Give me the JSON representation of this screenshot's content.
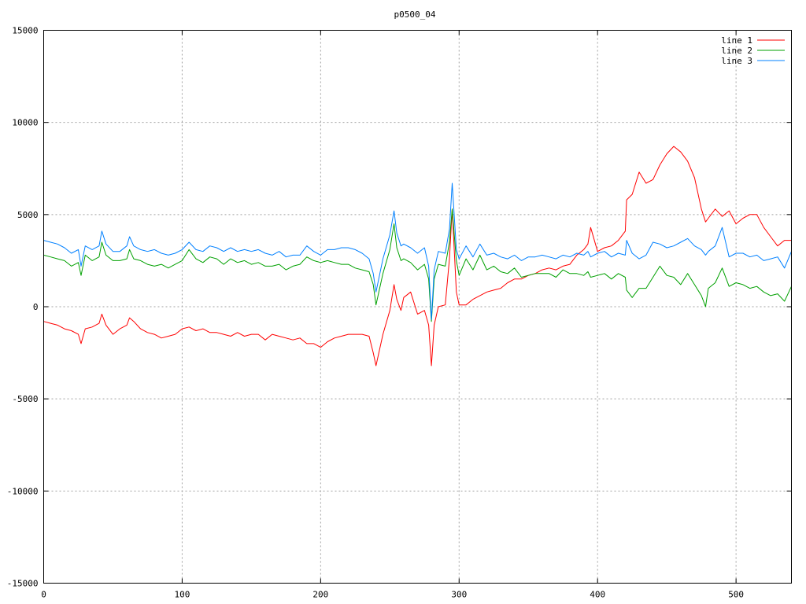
{
  "chart_data": {
    "type": "line",
    "title": "p0500_04",
    "xlim": [
      0,
      540
    ],
    "ylim": [
      -15000,
      15000
    ],
    "x_ticks": [
      0,
      100,
      200,
      300,
      400,
      500
    ],
    "y_ticks": [
      15000,
      10000,
      5000,
      0,
      -5000,
      -10000,
      -15000
    ],
    "grid": true,
    "legend_position": "top-right",
    "series": [
      {
        "name": "line 1",
        "color": "#ff0000",
        "x": [
          0,
          5,
          10,
          15,
          20,
          25,
          27,
          30,
          35,
          40,
          42,
          45,
          50,
          55,
          60,
          62,
          65,
          70,
          75,
          80,
          85,
          90,
          95,
          100,
          105,
          110,
          115,
          120,
          125,
          130,
          135,
          140,
          145,
          150,
          155,
          160,
          165,
          170,
          175,
          180,
          185,
          190,
          195,
          200,
          205,
          210,
          215,
          220,
          225,
          230,
          235,
          238,
          240,
          245,
          250,
          253,
          255,
          258,
          260,
          265,
          270,
          275,
          278,
          280,
          282,
          285,
          290,
          293,
          295,
          298,
          300,
          305,
          310,
          315,
          320,
          325,
          330,
          335,
          340,
          345,
          350,
          355,
          360,
          365,
          370,
          375,
          380,
          385,
          390,
          393,
          395,
          400,
          405,
          410,
          415,
          420,
          421,
          425,
          430,
          435,
          440,
          445,
          450,
          455,
          460,
          465,
          470,
          475,
          478,
          480,
          485,
          490,
          495,
          500,
          505,
          510,
          515,
          520,
          525,
          530,
          535,
          540
        ],
        "values": [
          -800,
          -900,
          -1000,
          -1200,
          -1300,
          -1500,
          -2000,
          -1200,
          -1100,
          -900,
          -400,
          -1000,
          -1500,
          -1200,
          -1000,
          -600,
          -800,
          -1200,
          -1400,
          -1500,
          -1700,
          -1600,
          -1500,
          -1200,
          -1100,
          -1300,
          -1200,
          -1400,
          -1400,
          -1500,
          -1600,
          -1400,
          -1600,
          -1500,
          -1500,
          -1800,
          -1500,
          -1600,
          -1700,
          -1800,
          -1700,
          -2000,
          -2000,
          -2200,
          -1900,
          -1700,
          -1600,
          -1500,
          -1500,
          -1500,
          -1600,
          -2500,
          -3200,
          -1500,
          -200,
          1200,
          400,
          -200,
          500,
          800,
          -400,
          -200,
          -1000,
          -3200,
          -1000,
          0,
          100,
          2600,
          5300,
          800,
          100,
          100,
          400,
          600,
          800,
          900,
          1000,
          1300,
          1500,
          1500,
          1700,
          1800,
          2000,
          2100,
          2000,
          2200,
          2300,
          2800,
          3100,
          3400,
          4300,
          3000,
          3200,
          3300,
          3600,
          4100,
          5800,
          6100,
          7300,
          6700,
          6900,
          7700,
          8300,
          8700,
          8400,
          7900,
          7000,
          5300,
          4600,
          4800,
          5300,
          4900,
          5200,
          4500,
          4800,
          5000,
          5000,
          4300,
          3800,
          3300,
          3600,
          3600
        ]
      },
      {
        "name": "line 2",
        "color": "#00a000",
        "x": [
          0,
          5,
          10,
          15,
          20,
          25,
          27,
          30,
          35,
          40,
          42,
          45,
          50,
          55,
          60,
          62,
          65,
          70,
          75,
          80,
          85,
          90,
          95,
          100,
          105,
          110,
          115,
          120,
          125,
          130,
          135,
          140,
          145,
          150,
          155,
          160,
          165,
          170,
          175,
          180,
          185,
          190,
          195,
          200,
          205,
          210,
          215,
          220,
          225,
          230,
          235,
          238,
          240,
          245,
          250,
          253,
          255,
          258,
          260,
          265,
          270,
          275,
          278,
          280,
          282,
          285,
          290,
          293,
          295,
          298,
          300,
          305,
          310,
          315,
          320,
          325,
          330,
          335,
          340,
          345,
          350,
          355,
          360,
          365,
          370,
          375,
          380,
          385,
          390,
          393,
          395,
          400,
          405,
          410,
          415,
          420,
          421,
          425,
          430,
          435,
          440,
          445,
          450,
          455,
          460,
          465,
          470,
          475,
          478,
          480,
          485,
          490,
          495,
          500,
          505,
          510,
          515,
          520,
          525,
          530,
          535,
          540
        ],
        "values": [
          2800,
          2700,
          2600,
          2500,
          2200,
          2400,
          1700,
          2800,
          2500,
          2700,
          3500,
          2800,
          2500,
          2500,
          2600,
          3100,
          2600,
          2500,
          2300,
          2200,
          2300,
          2100,
          2300,
          2500,
          3100,
          2600,
          2400,
          2700,
          2600,
          2300,
          2600,
          2400,
          2500,
          2300,
          2400,
          2200,
          2200,
          2300,
          2000,
          2200,
          2300,
          2700,
          2500,
          2400,
          2500,
          2400,
          2300,
          2300,
          2100,
          2000,
          1900,
          1200,
          100,
          1800,
          3100,
          4500,
          3200,
          2500,
          2600,
          2400,
          2000,
          2300,
          1500,
          -800,
          1500,
          2300,
          2200,
          3500,
          5300,
          2500,
          1700,
          2600,
          2000,
          2800,
          2000,
          2200,
          1900,
          1800,
          2100,
          1600,
          1700,
          1800,
          1800,
          1800,
          1600,
          2000,
          1800,
          1800,
          1700,
          1900,
          1600,
          1700,
          1800,
          1500,
          1800,
          1600,
          900,
          500,
          1000,
          1000,
          1600,
          2200,
          1700,
          1600,
          1200,
          1800,
          1200,
          600,
          0,
          1000,
          1300,
          2100,
          1100,
          1300,
          1200,
          1000,
          1100,
          800,
          600,
          700,
          300,
          1100
        ]
      },
      {
        "name": "line 3",
        "color": "#0080ff",
        "x": [
          0,
          5,
          10,
          15,
          20,
          25,
          27,
          30,
          35,
          40,
          42,
          45,
          50,
          55,
          60,
          62,
          65,
          70,
          75,
          80,
          85,
          90,
          95,
          100,
          105,
          110,
          115,
          120,
          125,
          130,
          135,
          140,
          145,
          150,
          155,
          160,
          165,
          170,
          175,
          180,
          185,
          190,
          195,
          200,
          205,
          210,
          215,
          220,
          225,
          230,
          235,
          238,
          240,
          245,
          250,
          253,
          255,
          258,
          260,
          265,
          270,
          275,
          278,
          280,
          282,
          285,
          290,
          293,
          295,
          298,
          300,
          305,
          310,
          315,
          320,
          325,
          330,
          335,
          340,
          345,
          350,
          355,
          360,
          365,
          370,
          375,
          380,
          385,
          390,
          393,
          395,
          400,
          405,
          410,
          415,
          420,
          421,
          425,
          430,
          435,
          440,
          445,
          450,
          455,
          460,
          465,
          470,
          475,
          478,
          480,
          485,
          490,
          495,
          500,
          505,
          510,
          515,
          520,
          525,
          530,
          535,
          540
        ],
        "values": [
          3600,
          3500,
          3400,
          3200,
          2900,
          3100,
          2200,
          3300,
          3100,
          3300,
          4100,
          3400,
          3000,
          3000,
          3300,
          3800,
          3300,
          3100,
          3000,
          3100,
          2900,
          2800,
          2900,
          3100,
          3500,
          3100,
          3000,
          3300,
          3200,
          3000,
          3200,
          3000,
          3100,
          3000,
          3100,
          2900,
          2800,
          3000,
          2700,
          2800,
          2800,
          3300,
          3000,
          2800,
          3100,
          3100,
          3200,
          3200,
          3100,
          2900,
          2600,
          1800,
          800,
          2600,
          3900,
          5200,
          4000,
          3300,
          3400,
          3200,
          2900,
          3200,
          2200,
          -700,
          2000,
          3000,
          2900,
          4200,
          6700,
          3100,
          2600,
          3300,
          2700,
          3400,
          2800,
          2900,
          2700,
          2600,
          2800,
          2500,
          2700,
          2700,
          2800,
          2700,
          2600,
          2800,
          2700,
          2900,
          2800,
          3000,
          2700,
          2900,
          3000,
          2700,
          2900,
          2800,
          3600,
          2900,
          2600,
          2800,
          3500,
          3400,
          3200,
          3300,
          3500,
          3700,
          3300,
          3100,
          2800,
          3000,
          3300,
          4300,
          2700,
          2900,
          2900,
          2700,
          2800,
          2500,
          2600,
          2700,
          2100,
          3000
        ]
      }
    ]
  }
}
